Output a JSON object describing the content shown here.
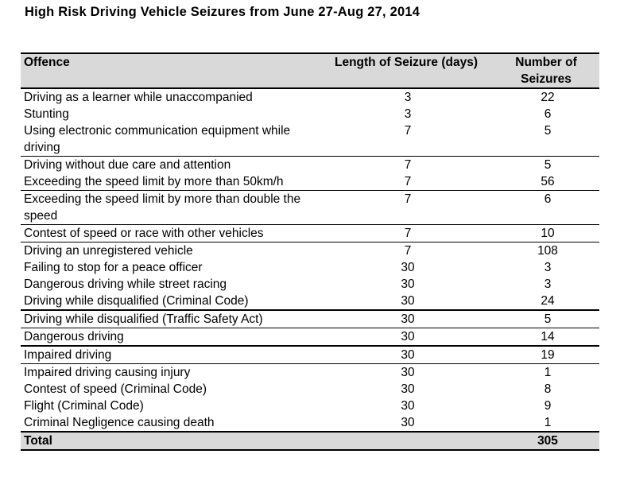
{
  "title": "High Risk Driving Vehicle Seizures from June 27-Aug 27, 2014",
  "table": {
    "headers": [
      "Offence",
      "Length of Seizure (days)",
      "Number of Seizures"
    ],
    "rows": [
      {
        "offence": "Driving as a learner while unaccompanied",
        "length": "3",
        "number": "22"
      },
      {
        "offence": "Stunting",
        "length": "3",
        "number": "6"
      },
      {
        "offence": "Using electronic communication equipment while driving",
        "length": "7",
        "number": "5"
      },
      {
        "offence": "Driving without due care and attention",
        "length": "7",
        "number": "5"
      },
      {
        "offence": "Exceeding the speed limit by more than 50km/h",
        "length": "7",
        "number": "56"
      },
      {
        "offence": "Exceeding the speed limit by more than double the speed",
        "length": "7",
        "number": "6"
      },
      {
        "offence": "Contest of speed or race with other vehicles",
        "length": "7",
        "number": "10"
      },
      {
        "offence": "Driving an unregistered vehicle",
        "length": "7",
        "number": "108"
      },
      {
        "offence": "Failing to stop for a peace officer",
        "length": "30",
        "number": "3"
      },
      {
        "offence": "Dangerous driving while street racing",
        "length": "30",
        "number": "3"
      },
      {
        "offence": "Driving while disqualified (Criminal Code)",
        "length": "30",
        "number": "24"
      },
      {
        "offence": "Driving while disqualified (Traffic Safety Act)",
        "length": "30",
        "number": "5"
      },
      {
        "offence": "Dangerous driving",
        "length": "30",
        "number": "14"
      },
      {
        "offence": "Impaired driving",
        "length": "30",
        "number": "19"
      },
      {
        "offence": "Impaired driving causing injury",
        "length": "30",
        "number": "1"
      },
      {
        "offence": "Contest of speed (Criminal Code)",
        "length": "30",
        "number": "8"
      },
      {
        "offence": "Flight (Criminal Code)",
        "length": "30",
        "number": "9"
      },
      {
        "offence": "Criminal Negligence causing death",
        "length": "30",
        "number": "1"
      }
    ],
    "total": {
      "label": "Total",
      "length": "",
      "number": "305"
    }
  }
}
